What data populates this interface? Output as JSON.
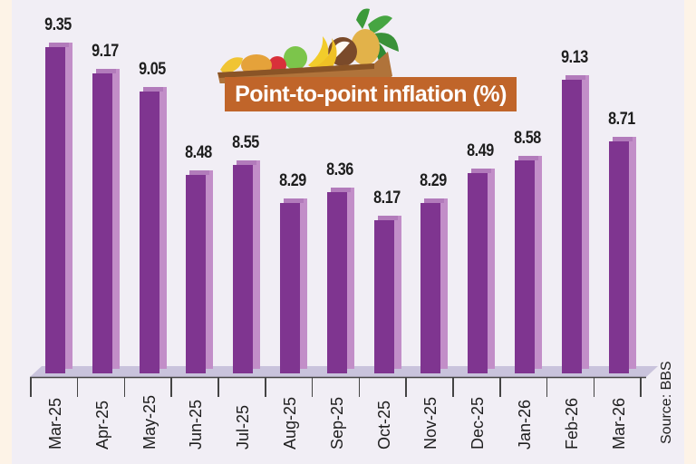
{
  "chart_data": {
    "type": "bar",
    "title": "Point-to-point inflation (%)",
    "categories": [
      "Mar-25",
      "Apr-25",
      "May-25",
      "Jun-25",
      "Jul-25",
      "Aug-25",
      "Sep-25",
      "Oct-25",
      "Nov-25",
      "Dec-25",
      "Jan-26",
      "Feb-26",
      "Mar-26"
    ],
    "values": [
      9.35,
      9.17,
      9.05,
      8.48,
      8.55,
      8.29,
      8.36,
      8.17,
      8.29,
      8.49,
      8.58,
      9.13,
      8.71
    ],
    "value_labels": [
      "9.35",
      "9.17",
      "9.05",
      "8.48",
      "8.55",
      "8.29",
      "8.36",
      "8.17",
      "8.29",
      "8.49",
      "8.58",
      "9.13",
      "8.71"
    ],
    "xlabel": "",
    "ylabel": "",
    "ylim": [
      7.13,
      9.6
    ],
    "grid": false,
    "legend": null,
    "style": "3d-column",
    "annotations": [
      "Source: BBS"
    ]
  },
  "title": "Point-to-point inflation (%)",
  "source": "Source: BBS",
  "colors": {
    "bar_front": "#7f3590",
    "bar_side": "#c28ec8",
    "bar_top": "#b27bbb",
    "floor": "#c9c3dc",
    "title_bg": "#c0652a",
    "background": "#f1eef5",
    "margin": "#fdf3e7"
  }
}
